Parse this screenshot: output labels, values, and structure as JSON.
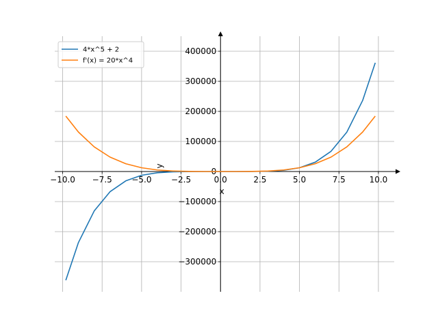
{
  "chart_data": {
    "type": "line",
    "title": "",
    "xlabel": "x",
    "ylabel": "y",
    "xlim": [
      -10.5,
      11.0
    ],
    "ylim": [
      -400000,
      450000
    ],
    "xticks": [
      -10.0,
      -7.5,
      -5.0,
      -2.5,
      0.0,
      2.5,
      5.0,
      7.5,
      10.0
    ],
    "xtick_labels": [
      "−10.0",
      "−7.5",
      "−5.0",
      "−2.5",
      "0.0",
      "2.5",
      "5.0",
      "7.5",
      "10.0"
    ],
    "yticks": [
      -300000,
      -200000,
      -100000,
      0,
      100000,
      200000,
      300000,
      400000
    ],
    "ytick_labels": [
      "−300000",
      "−200000",
      "−100000",
      "0",
      "100000",
      "200000",
      "300000",
      "400000"
    ],
    "grid": true,
    "legend_position": "top-left",
    "x": [
      -9.8,
      -9.0,
      -8.0,
      -7.0,
      -6.0,
      -5.0,
      -4.0,
      -3.0,
      -2.0,
      -1.0,
      0.0,
      1.0,
      2.0,
      3.0,
      4.0,
      5.0,
      6.0,
      7.0,
      8.0,
      9.0,
      9.8
    ],
    "series": [
      {
        "name": "4*x^5 + 2",
        "color": "#1f77b4",
        "values": [
          -361584,
          -236194,
          -131070,
          -67226,
          -31102,
          -12498,
          -4094,
          -970,
          -126,
          -2,
          2,
          6,
          130,
          974,
          4098,
          12502,
          31106,
          67230,
          131074,
          236198,
          361588
        ]
      },
      {
        "name": "f'(x) = 20*x^4",
        "color": "#ff7f0e",
        "values": [
          184473,
          131220,
          81920,
          48020,
          25920,
          12500,
          5120,
          1620,
          320,
          20,
          0,
          20,
          320,
          1620,
          5120,
          12500,
          25920,
          48020,
          81920,
          131220,
          184473
        ]
      }
    ]
  }
}
